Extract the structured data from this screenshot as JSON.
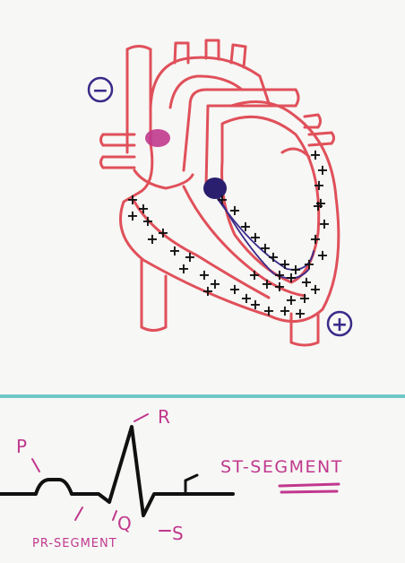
{
  "colors": {
    "heart_outline": "#e0505a",
    "pink": "#c0388e",
    "purple": "#3a2a8a",
    "divider": "#6fc8c8",
    "ink": "#111111"
  },
  "electrodes": {
    "negative_symbol": "−",
    "positive_symbol": "+"
  },
  "ecg_labels": {
    "p": "P",
    "r": "R",
    "q": "Q",
    "s": "S",
    "st_segment": "ST-SEGMENT",
    "pr_segment": "PR-SEGMENT"
  },
  "depolarization_mark": "+"
}
